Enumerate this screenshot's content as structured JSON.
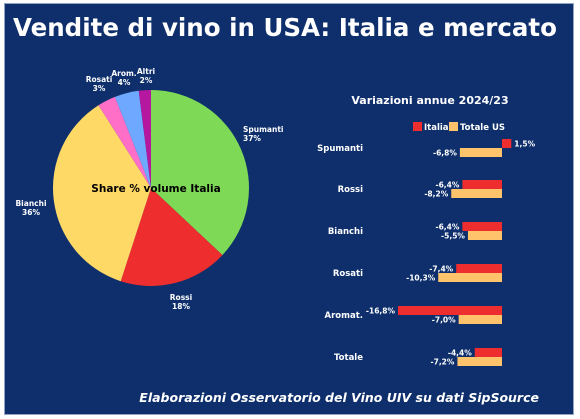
{
  "header": {
    "title": "Vendite di vino in USA: Italia e mercato",
    "source": "Elaborazioni Osservatorio del Vino UIV su dati SipSource"
  },
  "chart_data": [
    {
      "type": "pie",
      "title": "Share % volume Italia",
      "slices": [
        {
          "label": "Spumanti",
          "value": 37,
          "value_label": "37%",
          "color": "#7ed957"
        },
        {
          "label": "Rossi",
          "value": 18,
          "value_label": "18%",
          "color": "#ee2e2e"
        },
        {
          "label": "Bianchi",
          "value": 36,
          "value_label": "36%",
          "color": "#ffd966"
        },
        {
          "label": "Rosati",
          "value": 3,
          "value_label": "3%",
          "color": "#ff6ec7"
        },
        {
          "label": "Arom.",
          "value": 4,
          "value_label": "4%",
          "color": "#6fa8ff"
        },
        {
          "label": "Altri",
          "value": 2,
          "value_label": "2%",
          "color": "#b5179e"
        }
      ]
    },
    {
      "type": "bar",
      "orientation": "horizontal",
      "title": "Variazioni annue 2024/23",
      "categories": [
        "Spumanti",
        "Rossi",
        "Bianchi",
        "Rosati",
        "Aromat.",
        "Totale"
      ],
      "series": [
        {
          "name": "Italia",
          "color": "#ee2e2e",
          "values": [
            1.5,
            -6.4,
            -6.4,
            -7.4,
            -16.8,
            -4.4
          ],
          "labels": [
            "1,5%",
            "-6,4%",
            "-6,4%",
            "-7,4%",
            "-16,8%",
            "-4,4%"
          ]
        },
        {
          "name": "Totale US",
          "color": "#ffc36b",
          "values": [
            -6.8,
            -8.2,
            -5.5,
            -10.3,
            -7.0,
            -7.2
          ],
          "labels": [
            "-6,8%",
            "-8,2%",
            "-5,5%",
            "-10,3%",
            "-7,0%",
            "-7,2%"
          ]
        }
      ],
      "xlim": [
        -17,
        2
      ],
      "legend": "top-right"
    }
  ]
}
